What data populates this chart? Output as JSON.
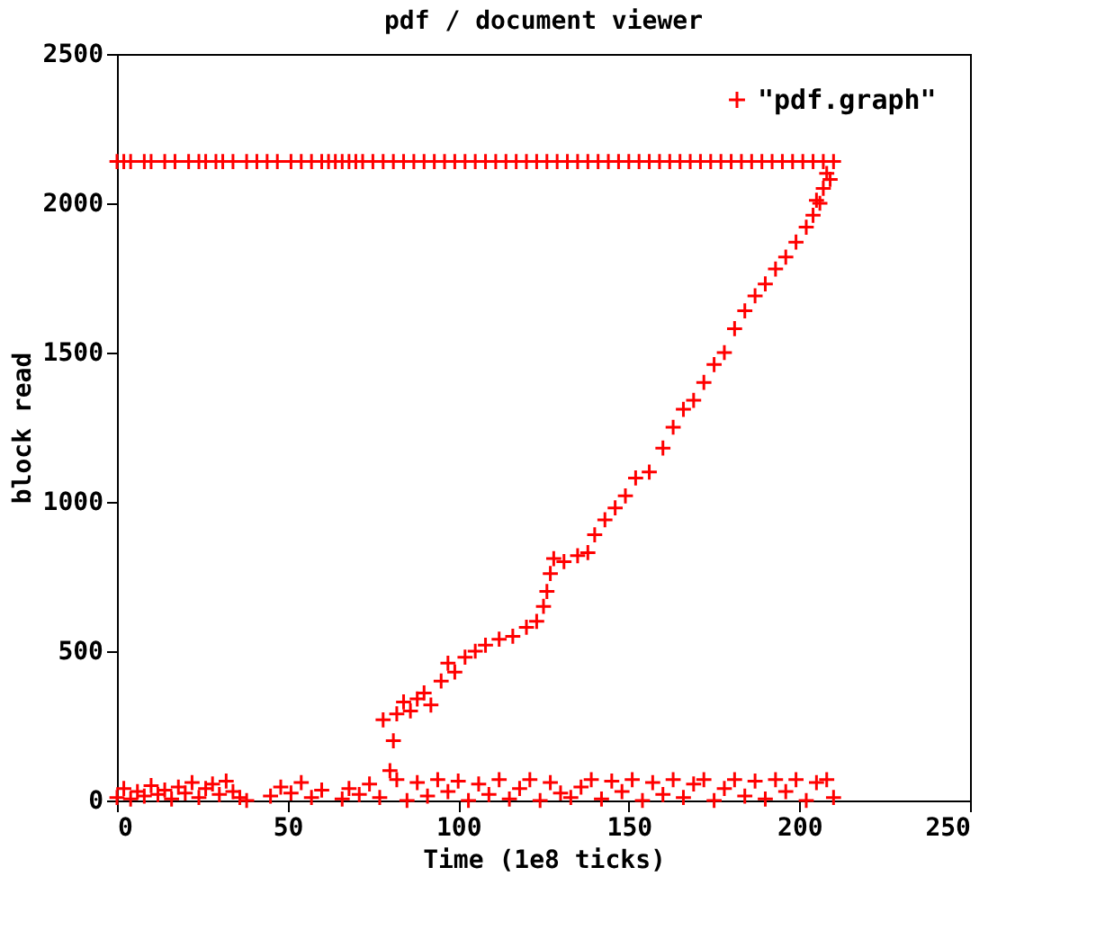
{
  "chart_data": {
    "type": "scatter",
    "title": "pdf / document viewer",
    "xlabel": "Time (1e8 ticks)",
    "ylabel": "block read",
    "xlim": [
      0,
      250
    ],
    "xticks": [
      0,
      50,
      100,
      150,
      200,
      250
    ],
    "ylim": [
      0,
      2500
    ],
    "yticks": [
      0,
      500,
      1000,
      1500,
      2000,
      2500
    ],
    "grid": false,
    "legend": "top right",
    "marker": "cross",
    "series": [
      {
        "name": "\"pdf.graph\"",
        "color": "#ff0000",
        "x": [
          0,
          2,
          4,
          6,
          8,
          10,
          12,
          14,
          16,
          18,
          20,
          22,
          24,
          26,
          28,
          30,
          32,
          34,
          36,
          38,
          45,
          48,
          51,
          54,
          57,
          60,
          66,
          68,
          71,
          74,
          77,
          82,
          85,
          88,
          91,
          94,
          97,
          100,
          103,
          106,
          109,
          112,
          115,
          118,
          121,
          124,
          127,
          130,
          133,
          136,
          139,
          142,
          145,
          148,
          151,
          154,
          157,
          160,
          163,
          166,
          169,
          172,
          175,
          178,
          181,
          184,
          187,
          190,
          193,
          196,
          199,
          202,
          205,
          208,
          210,
          78,
          80,
          81,
          82,
          84,
          86,
          88,
          90,
          92,
          95,
          97,
          99,
          102,
          105,
          108,
          112,
          116,
          120,
          123,
          125,
          126,
          127,
          128,
          131,
          135,
          138,
          140,
          143,
          146,
          149,
          152,
          156,
          160,
          163,
          166,
          169,
          172,
          175,
          178,
          181,
          184,
          187,
          190,
          193,
          196,
          199,
          202,
          204,
          205,
          206,
          207,
          208,
          209,
          0,
          2,
          4,
          8,
          10,
          14,
          17,
          21,
          24,
          26,
          29,
          31,
          34,
          38,
          41,
          44,
          47,
          51,
          54,
          57,
          60,
          62,
          64,
          66,
          68,
          70,
          72,
          75,
          78,
          81,
          84,
          87,
          90,
          93,
          96,
          99,
          102,
          105,
          108,
          111,
          114,
          117,
          120,
          123,
          126,
          129,
          132,
          135,
          138,
          141,
          144,
          147,
          150,
          153,
          156,
          159,
          162,
          165,
          168,
          171,
          174,
          177,
          180,
          183,
          186,
          189,
          192,
          195,
          198,
          201,
          204,
          207,
          210
        ],
        "values": [
          10,
          40,
          5,
          30,
          15,
          50,
          20,
          35,
          5,
          45,
          25,
          60,
          10,
          40,
          55,
          20,
          65,
          30,
          10,
          0,
          15,
          45,
          25,
          60,
          10,
          35,
          5,
          40,
          20,
          55,
          10,
          70,
          0,
          60,
          15,
          70,
          30,
          65,
          0,
          55,
          20,
          70,
          5,
          40,
          70,
          0,
          60,
          25,
          10,
          45,
          70,
          5,
          65,
          30,
          70,
          0,
          60,
          20,
          70,
          10,
          55,
          70,
          0,
          40,
          70,
          15,
          65,
          5,
          70,
          30,
          70,
          0,
          60,
          70,
          10,
          270,
          100,
          200,
          290,
          330,
          300,
          340,
          360,
          320,
          400,
          460,
          430,
          480,
          500,
          520,
          540,
          550,
          580,
          600,
          650,
          700,
          760,
          810,
          800,
          820,
          830,
          890,
          940,
          980,
          1020,
          1080,
          1100,
          1180,
          1250,
          1310,
          1340,
          1400,
          1460,
          1500,
          1580,
          1640,
          1690,
          1730,
          1780,
          1820,
          1870,
          1920,
          1960,
          2010,
          2000,
          2050,
          2100,
          2080,
          2140,
          2140,
          2140,
          2140,
          2140,
          2140,
          2140,
          2140,
          2140,
          2140,
          2140,
          2140,
          2140,
          2140,
          2140,
          2140,
          2140,
          2140,
          2140,
          2140,
          2140,
          2140,
          2140,
          2140,
          2140,
          2140,
          2140,
          2140,
          2140,
          2140,
          2140,
          2140,
          2140,
          2140,
          2140,
          2140,
          2140,
          2140,
          2140,
          2140,
          2140,
          2140,
          2140,
          2140,
          2140,
          2140,
          2140,
          2140,
          2140,
          2140,
          2140,
          2140,
          2140,
          2140,
          2140,
          2140,
          2140,
          2140,
          2140,
          2140,
          2140,
          2140,
          2140,
          2140,
          2140,
          2140,
          2140,
          2140,
          2140,
          2140,
          2140,
          2140,
          2140
        ]
      }
    ]
  }
}
